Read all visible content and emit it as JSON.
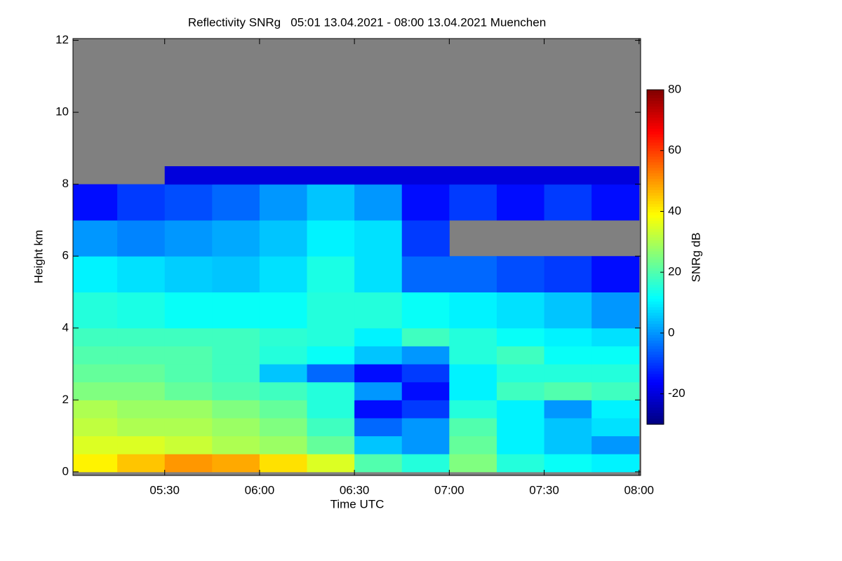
{
  "chart_data": {
    "type": "heatmap",
    "title": "Reflectivity SNRg   05:01 13.04.2021 - 08:00 13.04.2021 Muenchen",
    "x_label": "Time UTC",
    "y_label": "Height km",
    "colorbar_label": "SNRg dB",
    "x_bins": [
      301,
      315,
      330,
      345,
      360,
      375,
      390,
      405,
      420,
      435,
      450,
      465,
      480
    ],
    "y_bins": [
      0,
      0.5,
      1,
      1.5,
      2,
      2.5,
      3,
      3.5,
      4,
      5,
      6,
      7,
      8,
      8.5,
      12
    ],
    "values": [
      [
        40,
        45,
        50,
        48,
        42,
        35,
        20,
        15,
        25,
        15,
        12,
        10
      ],
      [
        35,
        35,
        33,
        30,
        28,
        22,
        5,
        0,
        22,
        10,
        5,
        0
      ],
      [
        32,
        30,
        30,
        28,
        25,
        18,
        -5,
        0,
        20,
        10,
        5,
        8
      ],
      [
        30,
        28,
        28,
        25,
        22,
        15,
        -15,
        -10,
        15,
        10,
        0,
        10
      ],
      [
        25,
        25,
        22,
        20,
        18,
        15,
        0,
        -15,
        10,
        18,
        20,
        18
      ],
      [
        22,
        22,
        20,
        18,
        5,
        -5,
        -15,
        -10,
        10,
        15,
        15,
        15
      ],
      [
        20,
        20,
        20,
        18,
        15,
        12,
        5,
        0,
        15,
        18,
        12,
        12
      ],
      [
        18,
        18,
        18,
        18,
        16,
        15,
        10,
        18,
        15,
        12,
        10,
        8
      ],
      [
        15,
        14,
        12,
        12,
        12,
        15,
        15,
        12,
        10,
        8,
        5,
        0
      ],
      [
        10,
        8,
        6,
        5,
        8,
        14,
        8,
        -5,
        -5,
        -8,
        -10,
        -15
      ],
      [
        0,
        -2,
        0,
        2,
        5,
        10,
        8,
        -10,
        null,
        null,
        null,
        null
      ],
      [
        -15,
        -10,
        -8,
        -5,
        0,
        5,
        0,
        -15,
        -10,
        -15,
        -10,
        -15
      ],
      [
        null,
        null,
        -20,
        -20,
        -20,
        -20,
        -20,
        -20,
        -20,
        -20,
        -20,
        -20
      ],
      [
        null,
        null,
        null,
        null,
        null,
        null,
        null,
        null,
        null,
        null,
        null,
        null
      ]
    ],
    "xlim": [
      301,
      480.5
    ],
    "ylim": [
      -0.1,
      12.05
    ],
    "xticks": [
      {
        "value": 330,
        "label": "05:30"
      },
      {
        "value": 360,
        "label": "06:00"
      },
      {
        "value": 390,
        "label": "06:30"
      },
      {
        "value": 420,
        "label": "07:00"
      },
      {
        "value": 450,
        "label": "07:30"
      },
      {
        "value": 480,
        "label": "08:00"
      }
    ],
    "yticks": [
      0,
      2,
      4,
      6,
      8,
      10,
      12
    ],
    "clim": [
      -30,
      80
    ],
    "cticks": [
      -20,
      0,
      20,
      40,
      60,
      80
    ],
    "colormap": "jet",
    "missing_color": "#808080"
  }
}
